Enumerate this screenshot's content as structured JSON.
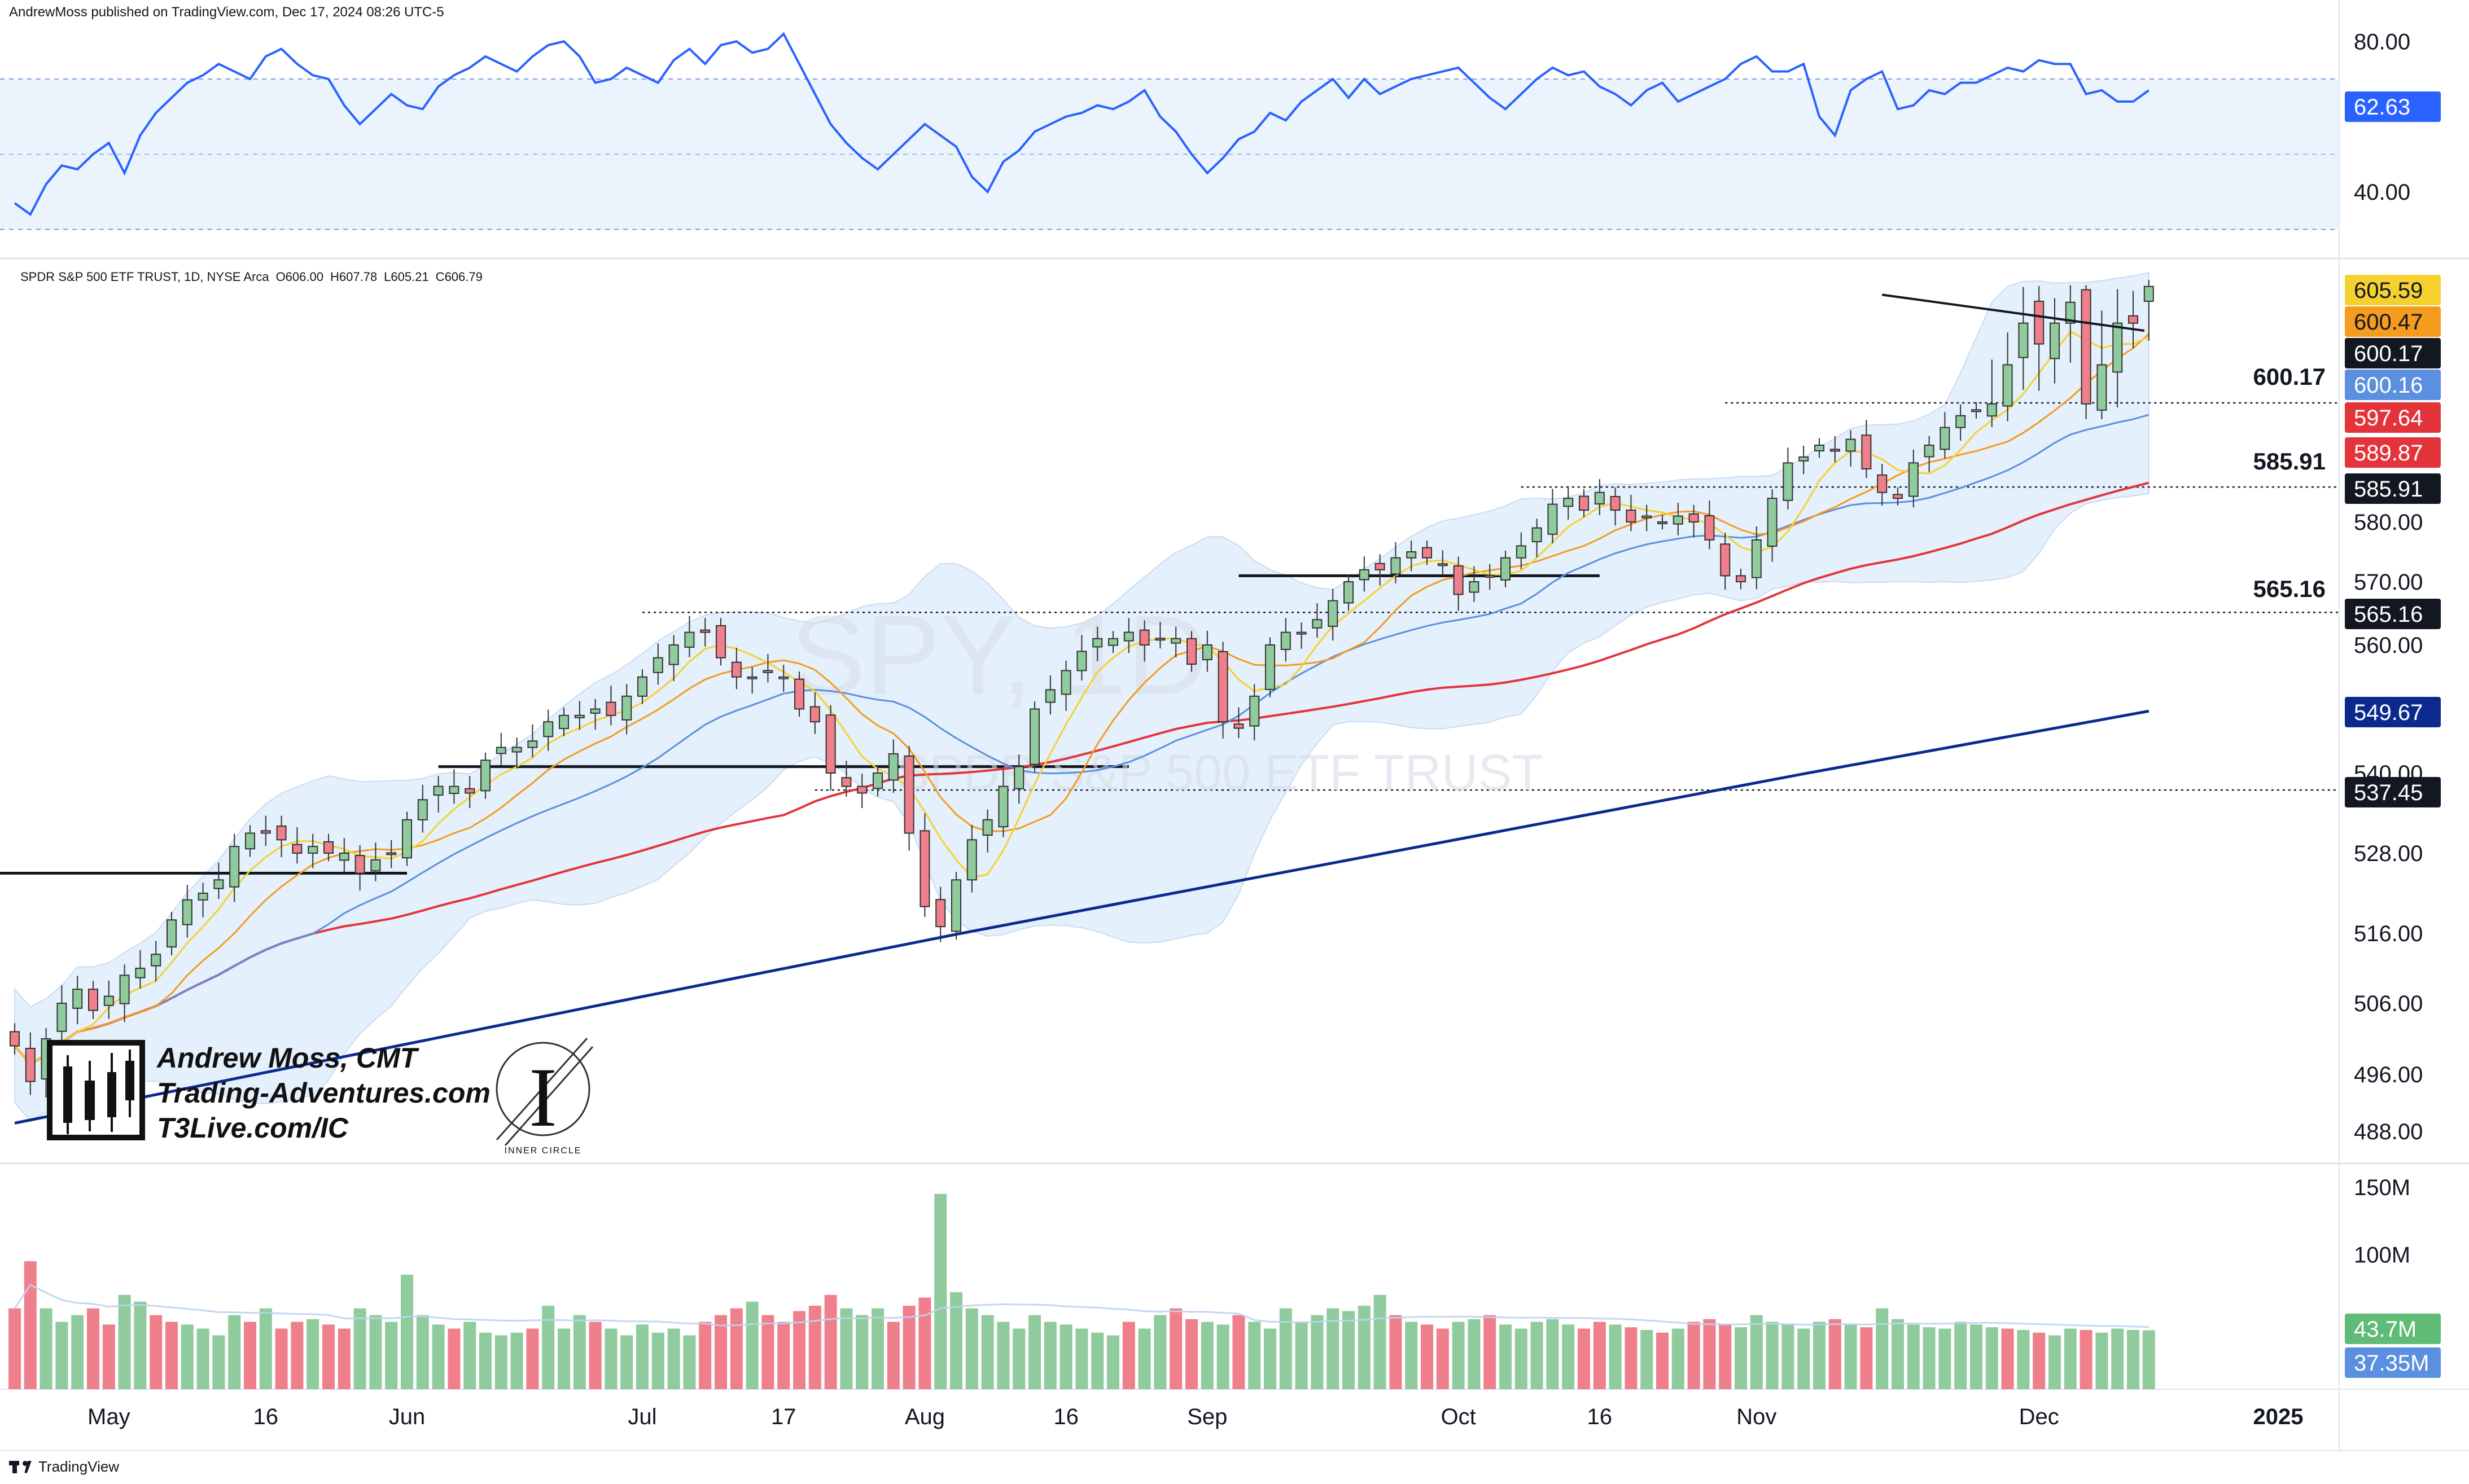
{
  "header": {
    "published_by": "AndrewMoss published on TradingView.com, Dec 17, 2024 08:26 UTC-5"
  },
  "instrument": {
    "legend": "SPDR S&P 500 ETF TRUST, 1D, NYSE Arca",
    "o_label": "O606.00",
    "h_label": "H607.78",
    "l_label": "L605.21",
    "c_label": "C606.79"
  },
  "watermark": {
    "symbol": "SPY, 1D",
    "name": "SPDR S&P 500 ETF TRUST"
  },
  "branding": {
    "line1": "Andrew Moss, CMT",
    "line2": "Trading-Adventures.com",
    "line3": "T3Live.com/IC",
    "circle_logo_text": "INNER CIRCLE"
  },
  "footer": {
    "brand": "TradingView"
  },
  "colors": {
    "up": "#8fcb9c",
    "down": "#ef7f8a",
    "rsi": "#2962ff",
    "sma5": "#f5d130",
    "sma10": "#f59b1e",
    "sma20": "#5b8fe0",
    "sma50": "#e3343c",
    "sma200": "#0b2a8f",
    "band_fill": "#e3effc"
  },
  "chart_data": [
    {
      "type": "line",
      "name": "RSI",
      "ylim": [
        25,
        85
      ],
      "ticks": [
        "80.00",
        "40.00"
      ],
      "levels": [
        70,
        50,
        30
      ],
      "current_label": "62.63",
      "current": 62.63,
      "values": [
        37,
        34,
        42,
        47,
        46,
        50,
        53,
        45,
        55,
        61,
        65,
        69,
        71,
        74,
        72,
        70,
        76,
        78,
        74,
        71,
        70,
        63,
        58,
        62,
        66,
        63,
        62,
        68,
        71,
        73,
        76,
        74,
        72,
        76,
        79,
        80,
        76,
        69,
        70,
        73,
        71,
        69,
        75,
        78,
        74,
        79,
        80,
        77,
        78,
        82,
        74,
        66,
        58,
        53,
        49,
        46,
        50,
        54,
        58,
        55,
        52,
        44,
        40,
        48,
        51,
        56,
        58,
        60,
        61,
        63,
        62,
        64,
        67,
        60,
        56,
        50,
        45,
        49,
        54,
        56,
        61,
        59,
        64,
        67,
        70,
        65,
        70,
        66,
        68,
        70,
        71,
        72,
        73,
        69,
        65,
        62,
        66,
        70,
        73,
        71,
        72,
        68,
        66,
        63,
        67,
        69,
        64,
        66,
        68,
        70,
        74,
        76,
        72,
        72,
        74,
        60,
        55,
        67,
        70,
        72,
        62,
        63,
        67,
        66,
        69,
        69,
        71,
        73,
        72,
        75,
        74,
        74,
        66,
        67,
        64,
        64,
        67
      ]
    },
    {
      "type": "candlestick",
      "title": "SPDR S&P 500 ETF TRUST, 1D, NYSE Arca",
      "ylim": [
        484,
        614
      ],
      "y_ticks": [
        "488.00",
        "496.00",
        "506.00",
        "516.00",
        "528.00",
        "540.00",
        "560.00",
        "570.00",
        "580.00"
      ],
      "y_tick_values": [
        488,
        496,
        506,
        516,
        528,
        540,
        560,
        570,
        580
      ],
      "x_labels": [
        "May",
        "16",
        "Jun",
        "Jul",
        "17",
        "Aug",
        "16",
        "Sep",
        "Oct",
        "16",
        "Nov",
        "Dec",
        "2025"
      ],
      "x_label_index": [
        6,
        16,
        25,
        40,
        49,
        58,
        67,
        76,
        92,
        101,
        111,
        129,
        143
      ],
      "date_range": [
        "2024-04-24",
        "2024-12-16"
      ],
      "closes": [
        500,
        495,
        501,
        506,
        508,
        505,
        507,
        510,
        511,
        513,
        518,
        521,
        522,
        524,
        529,
        531,
        531,
        530,
        528,
        529,
        528,
        528,
        525,
        527,
        528,
        533,
        536,
        538,
        538,
        537,
        542,
        544,
        544,
        545,
        548,
        549,
        549,
        550,
        549,
        552,
        555,
        558,
        560,
        562,
        562,
        558,
        555,
        555,
        556,
        555,
        550,
        548,
        540,
        538,
        537,
        540,
        543,
        531,
        520,
        517,
        524,
        530,
        533,
        538,
        541,
        550,
        553,
        556,
        559,
        561,
        561,
        562,
        560,
        561,
        561,
        557,
        560,
        548,
        547,
        552,
        560,
        562,
        562,
        564,
        567,
        570,
        572,
        572,
        574,
        575,
        574,
        573,
        568,
        570,
        571,
        574,
        576,
        579,
        583,
        584,
        582,
        585,
        582,
        580,
        581,
        580,
        581,
        580,
        577,
        571,
        570,
        577,
        584,
        590,
        591,
        593,
        592,
        594,
        589,
        585,
        584,
        590,
        593,
        596,
        598,
        599,
        600,
        602,
        604,
        603,
        604,
        605,
        600,
        602,
        604,
        604,
        606.79
      ],
      "sma_5_last": 605.59,
      "sma_10_last": 600.47,
      "sma_20_last": 600.16,
      "sma_50_last": 589.87,
      "sma_200_last": 549.67,
      "price_badges": [
        {
          "label": "605.59",
          "value": 605.59,
          "series": "SMA 5"
        },
        {
          "label": "600.47",
          "value": 600.47,
          "series": "SMA 10"
        },
        {
          "label": "600.17",
          "value": 600.17,
          "series": "level"
        },
        {
          "label": "600.16",
          "value": 600.16,
          "series": "SMA 20"
        },
        {
          "label": "597.64",
          "value": 597.64,
          "series": "SMA 20 alt"
        },
        {
          "label": "589.87",
          "value": 589.87,
          "series": "SMA 50"
        },
        {
          "label": "585.91",
          "value": 585.91,
          "series": "level"
        },
        {
          "label": "565.16",
          "value": 565.16,
          "series": "level"
        },
        {
          "label": "549.67",
          "value": 549.67,
          "series": "SMA 200"
        },
        {
          "label": "537.45",
          "value": 537.45,
          "series": "level"
        }
      ],
      "horizontal_levels": [
        {
          "label": "600.17",
          "value": 600.17,
          "style": "dotted"
        },
        {
          "label": "585.91",
          "value": 585.91,
          "style": "dotted"
        },
        {
          "label": "565.16",
          "value": 565.16,
          "style": "dotted"
        },
        {
          "label": "",
          "value": 537.45,
          "style": "dotted"
        }
      ],
      "support_lines": [
        {
          "value": 525,
          "from_index": 0,
          "to_index": 25
        },
        {
          "value": 541,
          "from_index": 27,
          "to_index": 71
        },
        {
          "value": 571,
          "from_index": 78,
          "to_index": 101
        }
      ],
      "trend_line": {
        "from_index": 119,
        "from_value": 605.2,
        "to_index": 135,
        "to_value": 603.8
      }
    },
    {
      "type": "bar",
      "name": "Volume",
      "ylim": [
        0,
        160
      ],
      "ticks": [
        "150M",
        "100M"
      ],
      "tick_values": [
        150,
        100
      ],
      "current_label": "43.7M",
      "current": 43.7,
      "ma_label": "37.35M",
      "ma": 37.35,
      "values": [
        60,
        95,
        60,
        50,
        55,
        60,
        48,
        70,
        65,
        55,
        50,
        48,
        45,
        40,
        55,
        50,
        60,
        45,
        50,
        52,
        48,
        45,
        60,
        55,
        50,
        85,
        55,
        48,
        45,
        50,
        42,
        40,
        42,
        45,
        62,
        45,
        55,
        50,
        45,
        40,
        48,
        42,
        45,
        40,
        50,
        55,
        60,
        65,
        55,
        50,
        58,
        62,
        70,
        60,
        55,
        60,
        50,
        62,
        68,
        145,
        72,
        60,
        55,
        50,
        45,
        55,
        50,
        48,
        45,
        42,
        40,
        50,
        45,
        55,
        60,
        52,
        50,
        48,
        55,
        50,
        45,
        60,
        50,
        55,
        60,
        58,
        62,
        70,
        55,
        50,
        48,
        45,
        50,
        52,
        55,
        48,
        45,
        50,
        52,
        48,
        45,
        50,
        48,
        46,
        44,
        42,
        45,
        50,
        52,
        48,
        46,
        55,
        50,
        48,
        45,
        50,
        52,
        48,
        46,
        60,
        52,
        48,
        46,
        45,
        50,
        48,
        46,
        45,
        44,
        42,
        40,
        45,
        44,
        42,
        45,
        44,
        43.7
      ],
      "up": [
        0,
        0,
        1,
        1,
        1,
        0,
        0,
        1,
        1,
        0,
        0,
        1,
        1,
        1,
        1,
        0,
        1,
        0,
        0,
        1,
        0,
        0,
        1,
        1,
        1,
        1,
        1,
        1,
        0,
        1,
        1,
        1,
        1,
        0,
        1,
        1,
        1,
        0,
        1,
        1,
        1,
        1,
        1,
        1,
        0,
        0,
        0,
        1,
        0,
        0,
        0,
        0,
        0,
        1,
        1,
        1,
        0,
        0,
        0,
        1,
        1,
        1,
        1,
        1,
        1,
        1,
        1,
        1,
        1,
        1,
        1,
        0,
        1,
        1,
        0,
        0,
        1,
        1,
        0,
        1,
        1,
        1,
        1,
        1,
        1,
        1,
        1,
        1,
        0,
        1,
        0,
        0,
        1,
        1,
        0,
        1,
        1,
        1,
        1,
        1,
        0,
        0,
        1,
        0,
        1,
        0,
        1,
        0,
        0,
        0,
        1,
        1,
        1,
        1,
        1,
        1,
        0,
        1,
        0,
        1,
        1,
        1,
        1,
        1,
        1,
        1,
        1,
        0,
        1,
        0,
        1,
        1,
        0,
        1,
        1,
        1,
        1
      ]
    }
  ]
}
